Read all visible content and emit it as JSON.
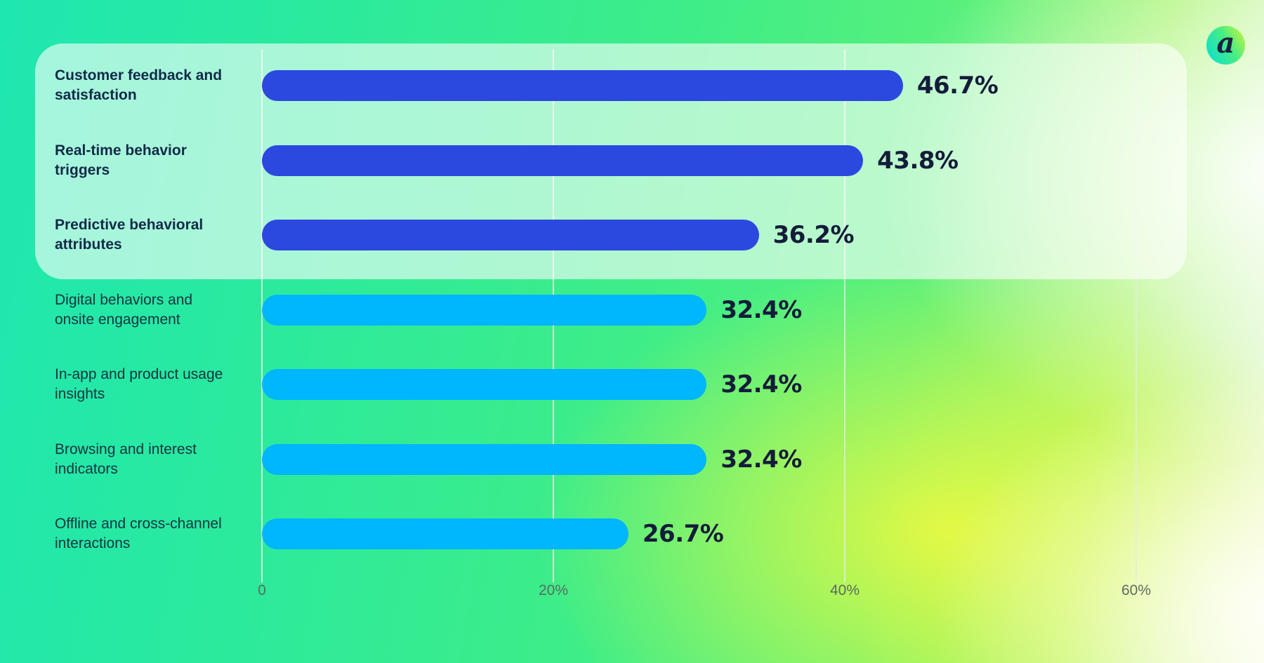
{
  "logo": {
    "letter": "a"
  },
  "colors": {
    "bar_highlighted": "#2B49DF",
    "bar_default": "#00B6FC",
    "highlight_card_bg": "rgba(255,255,255,0.6)",
    "label_text": "#14333F",
    "value_text": "#141C3A",
    "tick_text": "#5C6B61",
    "background_teal": "#1EE7B0",
    "background_green": "#3EED88",
    "background_yellow": "#F7FA3C"
  },
  "chart_data": {
    "type": "bar",
    "orientation": "horizontal",
    "title": "",
    "xlabel": "",
    "ylabel": "",
    "categories": [
      "Customer feedback and satisfaction",
      "Real-time behavior triggers",
      "Predictive behavioral attributes",
      "Digital behaviors and onsite engagement",
      "In-app and product usage insights",
      "Browsing and interest indicators",
      "Offline and cross-channel interactions"
    ],
    "values": [
      46.7,
      43.8,
      36.2,
      32.4,
      32.4,
      32.4,
      26.7
    ],
    "value_labels": [
      "46.7%",
      "43.8%",
      "36.2%",
      "32.4%",
      "32.4%",
      "32.4%",
      "26.7%"
    ],
    "highlight_count": 3,
    "x_ticks": [
      {
        "value": 0,
        "label": "0"
      },
      {
        "value": 20,
        "label": "20%"
      },
      {
        "value": 40,
        "label": "40%"
      },
      {
        "value": 60,
        "label": "60%"
      }
    ],
    "xlim": [
      0,
      68
    ],
    "grid": true,
    "legend": false
  }
}
